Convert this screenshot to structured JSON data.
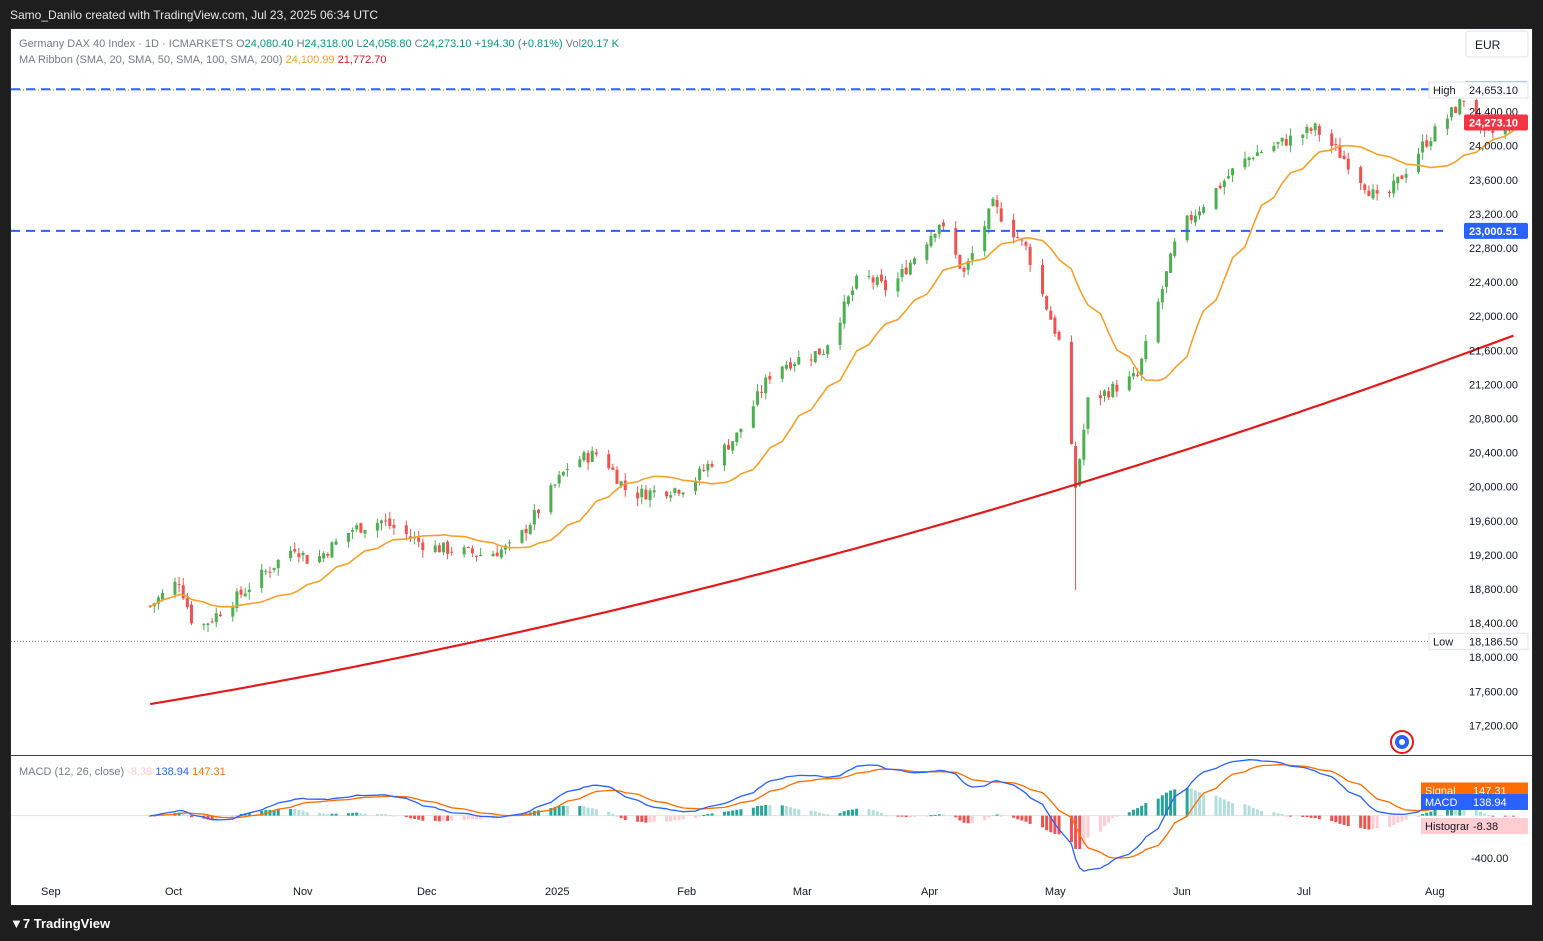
{
  "header": {
    "attribution": "Samo_Danilo created with TradingView.com, Jul 23, 2025 06:34 UTC"
  },
  "footer": {
    "brand": "TradingView",
    "logo_icon": "tradingview-logo-icon"
  },
  "legend": {
    "symbol": "Germany DAX 40 Index · 1D · ICMARKETS",
    "o_label": "O",
    "o_value": "24,080.40",
    "h_label": "H",
    "h_value": "24,318.00",
    "l_label": "L",
    "l_value": "24,058.80",
    "c_label": "C",
    "c_value": "24,273.10",
    "change": "+194.30 (+0.81%)",
    "vol_label": "Vol",
    "vol_value": "20.17 K",
    "ma_ribbon": "MA Ribbon (SMA, 20, SMA, 50, SMA, 100, SMA, 200)",
    "ma_value1": "24,100.99",
    "ma_value2": "21,772.70"
  },
  "currency": "EUR",
  "colors": {
    "up": "#26a69a",
    "up_candle": "#4caf50",
    "down": "#ef5350",
    "ma20": "#f7a12b",
    "ma200": "#e31a1c",
    "level": "#2962ff",
    "last_price": "#f23645",
    "macd": "#2962ff",
    "signal": "#ff6d00",
    "hist_up_strong": "#26a69a",
    "hist_up_weak": "#b2dfdb",
    "hist_down_strong": "#ef5350",
    "hist_down_weak": "#ffcdd2"
  },
  "price_axis": {
    "ticks": [
      "24,400.00",
      "24,000.00",
      "23,600.00",
      "23,200.00",
      "22,800.00",
      "22,400.00",
      "22,000.00",
      "21,600.00",
      "21,200.00",
      "20,800.00",
      "20,400.00",
      "20,000.00",
      "19,600.00",
      "19,200.00",
      "18,800.00",
      "18,400.00",
      "18,000.00",
      "17,600.00",
      "17,200.00"
    ],
    "tick_values": [
      24400,
      24000,
      23600,
      23200,
      22800,
      22400,
      22000,
      21600,
      21200,
      20800,
      20400,
      20000,
      19600,
      19200,
      18800,
      18400,
      18000,
      17600,
      17200
    ],
    "ylim": [
      16900,
      24900
    ]
  },
  "levels": {
    "resistance_label": "24,662.57",
    "resistance": 24662.57,
    "support_label": "23,000.51",
    "support": 23000.51,
    "high_label": "High",
    "high_value": "24,653.10",
    "high": 24653.1,
    "low_label": "Low",
    "low_value": "18,186.50",
    "low": 18186.5,
    "last_label": "24,273.10",
    "last": 24273.1
  },
  "time_axis": {
    "labels": [
      "Sep",
      "Oct",
      "Nov",
      "Dec",
      "2025",
      "Feb",
      "Mar",
      "Apr",
      "May",
      "Jun",
      "Jul",
      "Aug"
    ],
    "label_days": [
      2,
      32,
      63,
      93,
      124,
      156,
      184,
      215,
      245,
      276,
      306,
      337
    ]
  },
  "macd_panel": {
    "title": "MACD (12, 26, close)",
    "hist_value": "-8.38",
    "macd_value": "138.94",
    "signal_value": "147.31",
    "signal_label": "Signal",
    "macd_label": "MACD",
    "histogram_label": "Histogram",
    "axis_tick": "-400.00",
    "ylim": [
      -560,
      440
    ]
  },
  "chart_data": {
    "type": "candlestick",
    "title": "Germany DAX 40 Index · 1D · ICMARKETS",
    "timeframe": "1D",
    "x_range": [
      "Aug 2024",
      "Aug 2025"
    ],
    "approx_closes": [
      {
        "date": "2024-08-26",
        "close": 18600
      },
      {
        "date": "2024-09-02",
        "close": 18900
      },
      {
        "date": "2024-09-06",
        "close": 18300
      },
      {
        "date": "2024-09-16",
        "close": 18700
      },
      {
        "date": "2024-09-30",
        "close": 19300
      },
      {
        "date": "2024-10-04",
        "close": 19100
      },
      {
        "date": "2024-10-14",
        "close": 19500
      },
      {
        "date": "2024-10-21",
        "close": 19600
      },
      {
        "date": "2024-11-01",
        "close": 19300
      },
      {
        "date": "2024-11-15",
        "close": 19200
      },
      {
        "date": "2024-11-22",
        "close": 19300
      },
      {
        "date": "2024-12-06",
        "close": 20300
      },
      {
        "date": "2024-12-13",
        "close": 20400
      },
      {
        "date": "2024-12-20",
        "close": 19900
      },
      {
        "date": "2025-01-03",
        "close": 20000
      },
      {
        "date": "2025-01-15",
        "close": 20600
      },
      {
        "date": "2025-01-24",
        "close": 21400
      },
      {
        "date": "2025-02-05",
        "close": 21600
      },
      {
        "date": "2025-02-14",
        "close": 22500
      },
      {
        "date": "2025-02-21",
        "close": 22300
      },
      {
        "date": "2025-03-05",
        "close": 23100
      },
      {
        "date": "2025-03-11",
        "close": 22500
      },
      {
        "date": "2025-03-18",
        "close": 23300
      },
      {
        "date": "2025-03-26",
        "close": 22800
      },
      {
        "date": "2025-04-03",
        "close": 21700
      },
      {
        "date": "2025-04-07",
        "close": 20000
      },
      {
        "date": "2025-04-10",
        "close": 21000
      },
      {
        "date": "2025-04-22",
        "close": 21300
      },
      {
        "date": "2025-05-02",
        "close": 23000
      },
      {
        "date": "2025-05-15",
        "close": 23700
      },
      {
        "date": "2025-05-20",
        "close": 23900
      },
      {
        "date": "2025-06-04",
        "close": 24200
      },
      {
        "date": "2025-06-12",
        "close": 23800
      },
      {
        "date": "2025-06-20",
        "close": 23300
      },
      {
        "date": "2025-06-30",
        "close": 24000
      },
      {
        "date": "2025-07-10",
        "close": 24550
      },
      {
        "date": "2025-07-15",
        "close": 24100
      },
      {
        "date": "2025-07-22",
        "close": 24273.1
      }
    ],
    "ma_ribbon_sma20_last": 24100.99,
    "ma_ribbon_sma200_last": 21772.7,
    "horizontal_levels": [
      24662.57,
      23000.51
    ],
    "high": 24653.1,
    "low": 18186.5,
    "macd": {
      "macd": 138.94,
      "signal": 147.31,
      "histogram": -8.38
    },
    "grid": false,
    "legend_position": "top-left"
  }
}
